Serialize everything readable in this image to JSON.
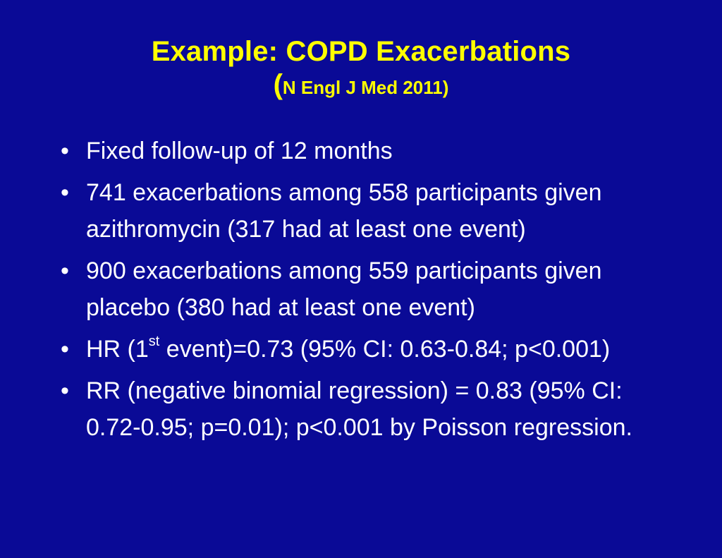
{
  "title": {
    "main": "Example: COPD Exacerbations",
    "paren_open": "(",
    "citation": "N Engl J Med 2011)"
  },
  "bullet_symbol": "•",
  "bullets": [
    {
      "text": "Fixed follow-up of 12 months"
    },
    {
      "text": "741 exacerbations among 558 participants given azithromycin (317 had at least one event)"
    },
    {
      "text": "900 exacerbations among 559 participants given placebo (380 had at least one event)"
    },
    {
      "text_before": "HR (1",
      "superscript": "st",
      "text_after": " event)=0.73 (95% CI: 0.63-0.84; p<0.001)"
    },
    {
      "text": "RR (negative binomial regression) = 0.83 (95% CI: 0.72-0.95; p=0.01); p<0.001 by Poisson regression."
    }
  ],
  "colors": {
    "background": "#0a0a96",
    "title": "#ffff00",
    "body_text": "#ffffff"
  }
}
